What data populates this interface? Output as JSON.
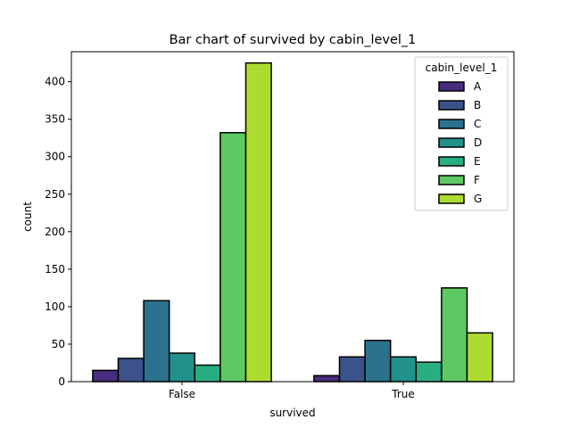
{
  "chart_data": {
    "type": "bar",
    "title": "Bar chart of survived by cabin_level_1",
    "xlabel": "survived",
    "ylabel": "count",
    "categories": [
      "False",
      "True"
    ],
    "ylim": [
      0,
      440
    ],
    "yticks": [
      0,
      50,
      100,
      150,
      200,
      250,
      300,
      350,
      400
    ],
    "legend": {
      "title": "cabin_level_1",
      "placement": "top-right"
    },
    "series": [
      {
        "name": "A",
        "color": "#472d7b",
        "values": [
          15,
          8
        ]
      },
      {
        "name": "B",
        "color": "#3b528b",
        "values": [
          31,
          33
        ]
      },
      {
        "name": "C",
        "color": "#2c728e",
        "values": [
          108,
          55
        ]
      },
      {
        "name": "D",
        "color": "#21918c",
        "values": [
          38,
          33
        ]
      },
      {
        "name": "E",
        "color": "#28ae80",
        "values": [
          22,
          26
        ]
      },
      {
        "name": "F",
        "color": "#5ec962",
        "values": [
          332,
          125
        ]
      },
      {
        "name": "G",
        "color": "#addc30",
        "values": [
          425,
          65
        ]
      }
    ]
  }
}
